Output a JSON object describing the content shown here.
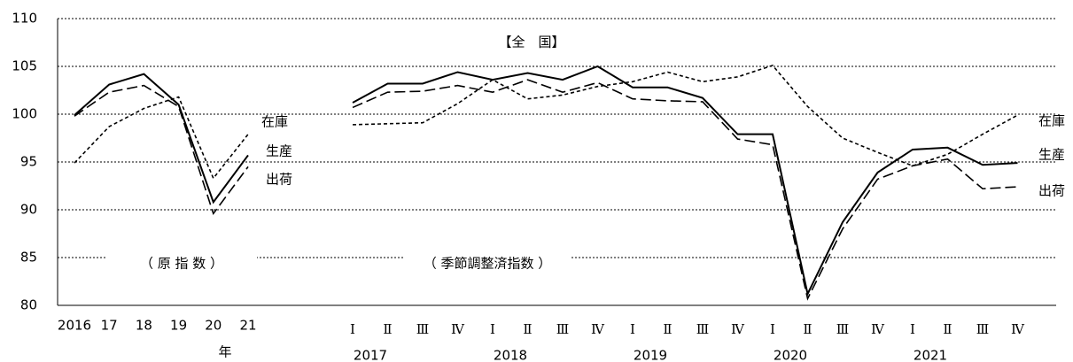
{
  "chart_data": [
    {
      "type": "line",
      "annotation": "（ 原 指 数 ）",
      "x_label": "年",
      "categories": [
        "2016",
        "17",
        "18",
        "19",
        "20",
        "21"
      ],
      "ylim": [
        80,
        110
      ],
      "yticks": [
        80,
        85,
        90,
        95,
        100,
        105,
        110
      ],
      "grid": true,
      "series": [
        {
          "name": "生産",
          "color": "#000000",
          "style": "solid",
          "values": [
            99.9,
            103.1,
            104.2,
            101.0,
            90.8,
            95.7
          ]
        },
        {
          "name": "出荷",
          "color": "#000000",
          "style": "dashed",
          "values": [
            99.8,
            102.3,
            103.0,
            100.8,
            89.6,
            94.5
          ]
        },
        {
          "name": "在庫",
          "color": "#000000",
          "style": "dotted",
          "values": [
            94.9,
            98.7,
            100.6,
            101.8,
            93.3,
            97.9
          ]
        }
      ]
    },
    {
      "type": "line",
      "title": "【全　国】",
      "annotation": "（ 季節調整済指数 ）",
      "categories": [
        "Ⅰ",
        "Ⅱ",
        "Ⅲ",
        "Ⅳ",
        "Ⅰ",
        "Ⅱ",
        "Ⅲ",
        "Ⅳ",
        "Ⅰ",
        "Ⅱ",
        "Ⅲ",
        "Ⅳ",
        "Ⅰ",
        "Ⅱ",
        "Ⅲ",
        "Ⅳ",
        "Ⅰ",
        "Ⅱ",
        "Ⅲ",
        "Ⅳ"
      ],
      "year_labels": [
        "2017",
        "2018",
        "2019",
        "2020",
        "2021"
      ],
      "series": [
        {
          "name": "生産",
          "color": "#000000",
          "style": "solid",
          "values": [
            101.2,
            103.2,
            103.2,
            104.4,
            103.6,
            104.3,
            103.6,
            105.0,
            102.8,
            102.8,
            101.7,
            97.9,
            97.9,
            81.2,
            88.7,
            93.9,
            96.3,
            96.5,
            94.7,
            94.9
          ]
        },
        {
          "name": "出荷",
          "color": "#000000",
          "style": "dashed",
          "values": [
            100.7,
            102.3,
            102.4,
            103.0,
            102.3,
            103.6,
            102.3,
            103.3,
            101.6,
            101.4,
            101.3,
            97.4,
            96.8,
            80.7,
            88.0,
            93.2,
            94.6,
            95.3,
            92.2,
            92.4
          ]
        },
        {
          "name": "在庫",
          "color": "#000000",
          "style": "dotted",
          "values": [
            98.9,
            99.0,
            99.1,
            101.1,
            103.6,
            101.6,
            102.0,
            102.9,
            103.4,
            104.4,
            103.4,
            103.9,
            105.1,
            100.8,
            97.5,
            96.0,
            94.6,
            95.8,
            97.9,
            99.9
          ]
        }
      ]
    }
  ]
}
